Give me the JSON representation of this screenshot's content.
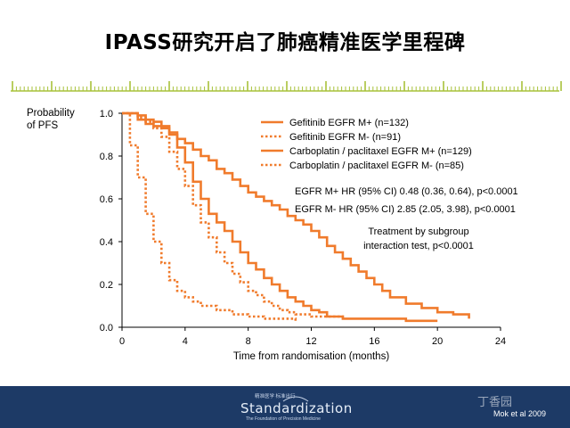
{
  "slide": {
    "title": "IPASS研究开启了肺癌精准医学里程碑",
    "citation": "Mok et al 2009",
    "logo": {
      "wordmark": "Standardization",
      "sub_top": "精准医学 标准出行",
      "sub_bottom": "The Foundation of Precision Medicine",
      "watermark": "丁香园"
    }
  },
  "colors": {
    "accent": "#f07b2c",
    "ruler": "#a8c23a",
    "footer": "#1d3a66"
  },
  "chart_data": {
    "type": "line",
    "ylabel": "Probability\nof PFS",
    "xlabel": "Time from randomisation (months)",
    "xlim": [
      0,
      24
    ],
    "ylim": [
      0,
      1.0
    ],
    "xticks": [
      "0",
      "4",
      "8",
      "12",
      "16",
      "20",
      "24"
    ],
    "yticks": [
      "0.0",
      "0.2",
      "0.4",
      "0.6",
      "0.8",
      "1.0"
    ],
    "grid": false,
    "legend_position": "top-right",
    "series": [
      {
        "name": "Gefitinib EGFR M+ (n=132)",
        "style": "solid",
        "color": "#f07b2c",
        "x": [
          0,
          1,
          1.5,
          2,
          2.5,
          3,
          3.5,
          4,
          4.5,
          5,
          5.5,
          6,
          6.5,
          7,
          7.5,
          8,
          8.5,
          9,
          9.5,
          10,
          10.5,
          11,
          11.5,
          12,
          12.5,
          13,
          13.5,
          14,
          14.5,
          15,
          15.5,
          16,
          16.5,
          17,
          18,
          19,
          20,
          21,
          22
        ],
        "y": [
          1.0,
          0.99,
          0.97,
          0.96,
          0.94,
          0.91,
          0.88,
          0.86,
          0.83,
          0.8,
          0.78,
          0.74,
          0.72,
          0.69,
          0.66,
          0.63,
          0.61,
          0.59,
          0.57,
          0.55,
          0.52,
          0.5,
          0.48,
          0.45,
          0.42,
          0.38,
          0.35,
          0.32,
          0.29,
          0.26,
          0.23,
          0.2,
          0.17,
          0.14,
          0.11,
          0.09,
          0.07,
          0.06,
          0.04
        ]
      },
      {
        "name": "Gefitinib EGFR M- (n=91)",
        "style": "dotted",
        "color": "#f07b2c",
        "x": [
          0,
          0.5,
          1,
          1.5,
          2,
          2.5,
          3,
          3.5,
          4,
          4.5,
          5,
          6,
          7,
          8,
          9,
          10,
          11
        ],
        "y": [
          1.0,
          0.85,
          0.7,
          0.53,
          0.4,
          0.3,
          0.22,
          0.17,
          0.14,
          0.12,
          0.1,
          0.08,
          0.06,
          0.05,
          0.04,
          0.04,
          0.03
        ]
      },
      {
        "name": "Carboplatin / paclitaxel EGFR M+ (n=129)",
        "style": "solid",
        "color": "#f07b2c",
        "x": [
          0,
          1,
          1.5,
          2,
          2.5,
          3,
          3.5,
          4,
          4.5,
          5,
          5.5,
          6,
          6.5,
          7,
          7.5,
          8,
          8.5,
          9,
          9.5,
          10,
          10.5,
          11,
          11.5,
          12,
          12.5,
          13,
          14,
          16,
          18,
          20
        ],
        "y": [
          1.0,
          0.97,
          0.95,
          0.94,
          0.93,
          0.9,
          0.84,
          0.77,
          0.68,
          0.6,
          0.53,
          0.49,
          0.45,
          0.4,
          0.35,
          0.3,
          0.27,
          0.23,
          0.2,
          0.17,
          0.14,
          0.12,
          0.1,
          0.08,
          0.07,
          0.05,
          0.04,
          0.04,
          0.03,
          0.03
        ]
      },
      {
        "name": "Carboplatin / paclitaxel EGFR M- (n=85)",
        "style": "dotted",
        "color": "#f07b2c",
        "x": [
          0,
          1,
          1.5,
          2,
          2.5,
          3,
          3.5,
          4,
          4.5,
          5,
          5.5,
          6,
          6.5,
          7,
          7.5,
          8,
          8.5,
          9,
          9.5,
          10,
          10.5,
          11,
          12,
          14
        ],
        "y": [
          1.0,
          0.98,
          0.96,
          0.93,
          0.89,
          0.82,
          0.74,
          0.66,
          0.57,
          0.49,
          0.42,
          0.35,
          0.3,
          0.25,
          0.21,
          0.17,
          0.15,
          0.12,
          0.1,
          0.08,
          0.07,
          0.06,
          0.05,
          0.04
        ]
      }
    ],
    "annotations": [
      "EGFR M+ HR (95% CI) 0.48 (0.36, 0.64), p<0.0001",
      "EGFR M- HR (95% CI) 2.85 (2.05, 3.98), p<0.0001",
      "Treatment by subgroup",
      "interaction test, p<0.0001"
    ]
  }
}
